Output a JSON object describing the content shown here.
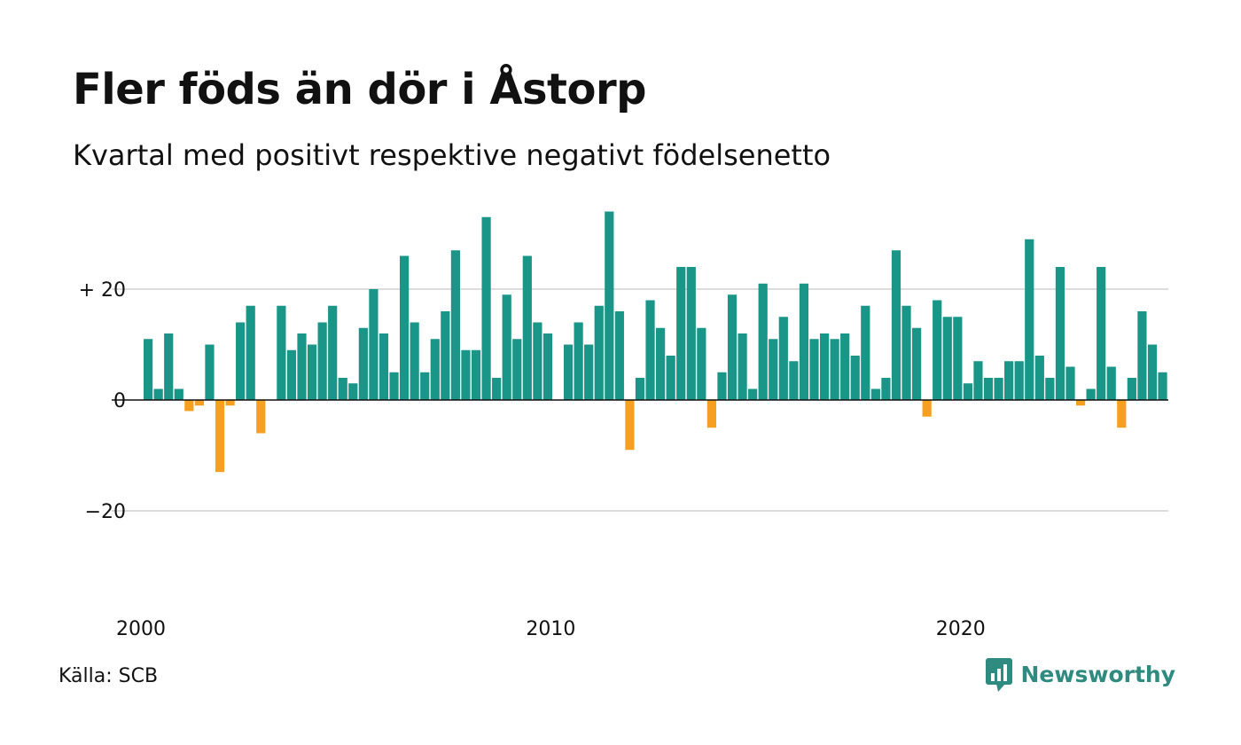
{
  "title": "Fler föds än dör i Åstorp",
  "subtitle": "Kvartal med positivt respektive negativt födelsenetto",
  "source": "Källa: SCB",
  "logo_text": "Newsworthy",
  "colors": {
    "positive": "#1a9688",
    "negative": "#f5a020",
    "grid": "#dddddd",
    "axis": "#111111"
  },
  "chart_data": {
    "type": "bar",
    "title": "Fler föds än dör i Åstorp",
    "subtitle": "Kvartal med positivt respektive negativt födelsenetto",
    "x_start": "2000 Q1",
    "x_tick_labels": [
      "2000",
      "2010",
      "2020"
    ],
    "y_tick_labels": [
      "+ 20",
      "0",
      "−20"
    ],
    "y_ticks": [
      20,
      0,
      -20
    ],
    "ylim": [
      -38,
      38
    ],
    "grid": true,
    "legend": "none",
    "values": [
      11,
      2,
      12,
      2,
      -2,
      -1,
      10,
      -13,
      -1,
      14,
      17,
      -6,
      0,
      17,
      9,
      12,
      10,
      14,
      17,
      4,
      3,
      13,
      20,
      12,
      5,
      26,
      14,
      5,
      11,
      16,
      27,
      9,
      9,
      33,
      4,
      19,
      11,
      26,
      14,
      12,
      0,
      10,
      14,
      10,
      17,
      34,
      16,
      -9,
      4,
      18,
      13,
      8,
      24,
      24,
      13,
      -5,
      5,
      19,
      12,
      2,
      21,
      11,
      15,
      7,
      21,
      11,
      12,
      11,
      12,
      8,
      17,
      2,
      4,
      27,
      17,
      13,
      -3,
      18,
      15,
      15,
      3,
      7,
      4,
      4,
      7,
      7,
      29,
      8,
      4,
      24,
      6,
      -1,
      2,
      24,
      6,
      -5,
      4,
      16,
      10,
      5
    ]
  }
}
